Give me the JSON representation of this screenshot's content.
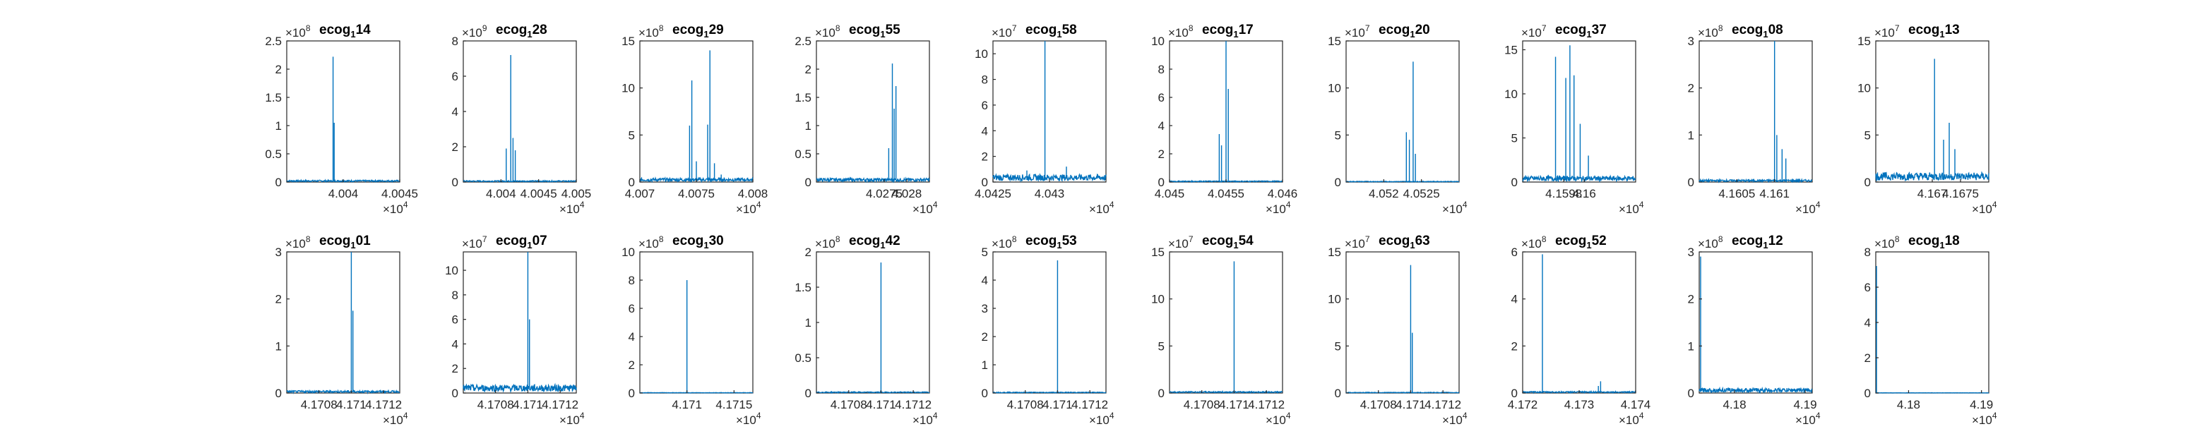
{
  "figure": {
    "background": "#ffffff",
    "axis_color": "#262626",
    "line_color": "#0072bd"
  },
  "chart_data": [
    {
      "type": "line",
      "title_main": "ecog",
      "title_sub": "1",
      "title_tail": "14",
      "xlim": [
        40035,
        40045
      ],
      "xticks": [
        40040,
        40045
      ],
      "xtick_labels": [
        "4.004",
        "4.0045"
      ],
      "x_exp": "4",
      "ylim": [
        0,
        2.5
      ],
      "yticks": [
        0,
        0.5,
        1,
        1.5,
        2,
        2.5
      ],
      "ytick_labels": [
        "0",
        "0.5",
        "1",
        "1.5",
        "2",
        "2.5"
      ],
      "y_exp": "8",
      "series": [
        {
          "baseline": 0.02,
          "spikes": [
            {
              "x": 40039.1,
              "y": 2.22
            },
            {
              "x": 40039.2,
              "y": 1.05
            }
          ]
        }
      ]
    },
    {
      "type": "line",
      "title_main": "ecog",
      "title_sub": "1",
      "title_tail": "28",
      "xlim": [
        40035,
        40050
      ],
      "xticks": [
        40040,
        40045,
        40050
      ],
      "xtick_labels": [
        "4.004",
        "4.0045",
        "4.005"
      ],
      "x_exp": "4",
      "ylim": [
        0,
        8
      ],
      "yticks": [
        0,
        2,
        4,
        6,
        8
      ],
      "ytick_labels": [
        "0",
        "2",
        "4",
        "6",
        "8"
      ],
      "y_exp": "9",
      "series": [
        {
          "baseline": 0.05,
          "spikes": [
            {
              "x": 40040.7,
              "y": 1.9
            },
            {
              "x": 40041.3,
              "y": 7.2
            },
            {
              "x": 40041.6,
              "y": 2.5
            },
            {
              "x": 40041.9,
              "y": 1.8
            }
          ]
        }
      ]
    },
    {
      "type": "line",
      "title_main": "ecog",
      "title_sub": "1",
      "title_tail": "29",
      "xlim": [
        40070,
        40080
      ],
      "xticks": [
        40070,
        40075,
        40080
      ],
      "xtick_labels": [
        "4.007",
        "4.0075",
        "4.008"
      ],
      "x_exp": "4",
      "ylim": [
        0,
        15
      ],
      "yticks": [
        0,
        5,
        10,
        15
      ],
      "ytick_labels": [
        "0",
        "5",
        "10",
        "15"
      ],
      "y_exp": "8",
      "series": [
        {
          "baseline": 0.25,
          "spikes": [
            {
              "x": 40074.4,
              "y": 6.0
            },
            {
              "x": 40074.6,
              "y": 10.8
            },
            {
              "x": 40075.0,
              "y": 2.2
            },
            {
              "x": 40076.0,
              "y": 6.1
            },
            {
              "x": 40076.2,
              "y": 14.0
            },
            {
              "x": 40076.6,
              "y": 2.0
            },
            {
              "x": 40077.2,
              "y": 0.8
            }
          ]
        }
      ]
    },
    {
      "type": "line",
      "title_main": "ecog",
      "title_sub": "1",
      "title_tail": "55",
      "xlim": [
        40260,
        40285
      ],
      "xticks": [
        40275,
        40280
      ],
      "xtick_labels": [
        "4.0275",
        "4.028"
      ],
      "x_exp": "4",
      "ylim": [
        0,
        2.5
      ],
      "yticks": [
        0,
        0.5,
        1,
        1.5,
        2,
        2.5
      ],
      "ytick_labels": [
        "0",
        "0.5",
        "1",
        "1.5",
        "2",
        "2.5"
      ],
      "y_exp": "8",
      "series": [
        {
          "baseline": 0.04,
          "spikes": [
            {
              "x": 40276.8,
              "y": 2.1
            },
            {
              "x": 40277.6,
              "y": 1.7
            },
            {
              "x": 40277.2,
              "y": 1.3
            },
            {
              "x": 40276.0,
              "y": 0.6
            }
          ]
        }
      ]
    },
    {
      "type": "line",
      "title_main": "ecog",
      "title_sub": "1",
      "title_tail": "58",
      "xlim": [
        40425,
        40435
      ],
      "xticks": [
        40425,
        40430
      ],
      "xtick_labels": [
        "4.0425",
        "4.043"
      ],
      "x_exp": "4",
      "ylim": [
        0,
        11
      ],
      "yticks": [
        0,
        2,
        4,
        6,
        8,
        10
      ],
      "ytick_labels": [
        "0",
        "2",
        "4",
        "6",
        "8",
        "10"
      ],
      "y_exp": "7",
      "series": [
        {
          "baseline": 0.35,
          "spikes": [
            {
              "x": 40429.6,
              "y": 11.0
            },
            {
              "x": 40431.5,
              "y": 1.2
            },
            {
              "x": 40428.0,
              "y": 0.9
            }
          ]
        }
      ]
    },
    {
      "type": "line",
      "title_main": "ecog",
      "title_sub": "1",
      "title_tail": "17",
      "xlim": [
        40450,
        40460
      ],
      "xticks": [
        40450,
        40455,
        40460
      ],
      "xtick_labels": [
        "4.045",
        "4.0455",
        "4.046"
      ],
      "x_exp": "4",
      "ylim": [
        0,
        10
      ],
      "yticks": [
        0,
        2,
        4,
        6,
        8,
        10
      ],
      "ytick_labels": [
        "0",
        "2",
        "4",
        "6",
        "8",
        "10"
      ],
      "y_exp": "8",
      "series": [
        {
          "baseline": 0.05,
          "spikes": [
            {
              "x": 40454.4,
              "y": 3.4
            },
            {
              "x": 40454.6,
              "y": 2.6
            },
            {
              "x": 40455.0,
              "y": 10.0
            },
            {
              "x": 40455.2,
              "y": 6.6
            }
          ]
        }
      ]
    },
    {
      "type": "line",
      "title_main": "ecog",
      "title_sub": "1",
      "title_tail": "20",
      "xlim": [
        40515,
        40530
      ],
      "xticks": [
        40520,
        40525
      ],
      "xtick_labels": [
        "4.052",
        "4.0525"
      ],
      "x_exp": "4",
      "ylim": [
        0,
        15
      ],
      "yticks": [
        0,
        5,
        10,
        15
      ],
      "ytick_labels": [
        "0",
        "5",
        "10",
        "15"
      ],
      "y_exp": "7",
      "series": [
        {
          "baseline": 0.05,
          "spikes": [
            {
              "x": 40523.0,
              "y": 5.3
            },
            {
              "x": 40523.4,
              "y": 4.5
            },
            {
              "x": 40523.9,
              "y": 12.8
            },
            {
              "x": 40524.2,
              "y": 3.0
            }
          ]
        }
      ]
    },
    {
      "type": "line",
      "title_main": "ecog",
      "title_sub": "1",
      "title_tail": "37",
      "xlim": [
        41594,
        41605
      ],
      "xticks": [
        41598,
        41600
      ],
      "xtick_labels": [
        "4.1598",
        "4.16"
      ],
      "x_exp": "4",
      "ylim": [
        0,
        16
      ],
      "yticks": [
        0,
        5,
        10,
        15
      ],
      "ytick_labels": [
        "0",
        "5",
        "10",
        "15"
      ],
      "y_exp": "7",
      "series": [
        {
          "baseline": 0.4,
          "spikes": [
            {
              "x": 41597.2,
              "y": 14.2
            },
            {
              "x": 41598.2,
              "y": 11.8
            },
            {
              "x": 41598.6,
              "y": 15.5
            },
            {
              "x": 41599.0,
              "y": 12.1
            },
            {
              "x": 41599.6,
              "y": 6.6
            },
            {
              "x": 41600.4,
              "y": 3.0
            }
          ]
        }
      ]
    },
    {
      "type": "line",
      "title_main": "ecog",
      "title_sub": "1",
      "title_tail": "08",
      "xlim": [
        41600,
        41615
      ],
      "xticks": [
        41605,
        41610
      ],
      "xtick_labels": [
        "4.1605",
        "4.161"
      ],
      "x_exp": "4",
      "ylim": [
        0,
        3
      ],
      "yticks": [
        0,
        1,
        2,
        3
      ],
      "ytick_labels": [
        "0",
        "1",
        "2",
        "3"
      ],
      "y_exp": "8",
      "series": [
        {
          "baseline": 0.03,
          "spikes": [
            {
              "x": 41610.0,
              "y": 3.0
            },
            {
              "x": 41610.3,
              "y": 1.0
            },
            {
              "x": 41611.0,
              "y": 0.7
            },
            {
              "x": 41611.5,
              "y": 0.5
            }
          ]
        }
      ]
    },
    {
      "type": "line",
      "title_main": "ecog",
      "title_sub": "1",
      "title_tail": "13",
      "xlim": [
        41660,
        41680
      ],
      "xticks": [
        41670,
        41675
      ],
      "xtick_labels": [
        "4.167",
        "4.1675"
      ],
      "x_exp": "4",
      "ylim": [
        0,
        15
      ],
      "yticks": [
        0,
        5,
        10,
        15
      ],
      "ytick_labels": [
        "0",
        "5",
        "10",
        "15"
      ],
      "y_exp": "7",
      "series": [
        {
          "baseline": 0.6,
          "spikes": [
            {
              "x": 41670.4,
              "y": 13.1
            },
            {
              "x": 41672.0,
              "y": 4.5
            },
            {
              "x": 41673.0,
              "y": 6.3
            },
            {
              "x": 41674.0,
              "y": 3.5
            }
          ]
        }
      ]
    },
    {
      "type": "line",
      "title_main": "ecog",
      "title_sub": "1",
      "title_tail": "01",
      "xlim": [
        41706,
        41713
      ],
      "xticks": [
        41708,
        41710,
        41712
      ],
      "xtick_labels": [
        "4.1708",
        "4.171",
        "4.1712"
      ],
      "x_exp": "4",
      "ylim": [
        0,
        3
      ],
      "yticks": [
        0,
        1,
        2,
        3
      ],
      "ytick_labels": [
        "0",
        "1",
        "2",
        "3"
      ],
      "y_exp": "8",
      "series": [
        {
          "baseline": 0.03,
          "spikes": [
            {
              "x": 41710.0,
              "y": 3.0
            },
            {
              "x": 41710.1,
              "y": 1.75
            }
          ]
        }
      ]
    },
    {
      "type": "line",
      "title_main": "ecog",
      "title_sub": "1",
      "title_tail": "07",
      "xlim": [
        41706,
        41713
      ],
      "xticks": [
        41708,
        41710,
        41712
      ],
      "xtick_labels": [
        "4.1708",
        "4.171",
        "4.1712"
      ],
      "x_exp": "4",
      "ylim": [
        0,
        11.5
      ],
      "yticks": [
        0,
        2,
        4,
        6,
        8,
        10
      ],
      "ytick_labels": [
        "0",
        "2",
        "4",
        "6",
        "8",
        "10"
      ],
      "y_exp": "7",
      "series": [
        {
          "baseline": 0.4,
          "spikes": [
            {
              "x": 41710.0,
              "y": 11.5
            },
            {
              "x": 41710.1,
              "y": 6.0
            }
          ]
        }
      ]
    },
    {
      "type": "line",
      "title_main": "ecog",
      "title_sub": "1",
      "title_tail": "30",
      "xlim": [
        41705,
        41717
      ],
      "xticks": [
        41710,
        41715
      ],
      "xtick_labels": [
        "4.171",
        "4.1715"
      ],
      "x_exp": "4",
      "ylim": [
        0,
        10
      ],
      "yticks": [
        0,
        2,
        4,
        6,
        8,
        10
      ],
      "ytick_labels": [
        "0",
        "2",
        "4",
        "6",
        "8",
        "10"
      ],
      "y_exp": "8",
      "series": [
        {
          "baseline": 0.02,
          "spikes": [
            {
              "x": 41710.0,
              "y": 8.0
            }
          ]
        }
      ]
    },
    {
      "type": "line",
      "title_main": "ecog",
      "title_sub": "1",
      "title_tail": "42",
      "xlim": [
        41706,
        41713
      ],
      "xticks": [
        41708,
        41710,
        41712
      ],
      "xtick_labels": [
        "4.1708",
        "4.171",
        "4.1712"
      ],
      "x_exp": "4",
      "ylim": [
        0,
        2
      ],
      "yticks": [
        0,
        0.5,
        1,
        1.5,
        2
      ],
      "ytick_labels": [
        "0",
        "0.5",
        "1",
        "1.5",
        "2"
      ],
      "y_exp": "8",
      "series": [
        {
          "baseline": 0.01,
          "spikes": [
            {
              "x": 41710.0,
              "y": 1.85
            }
          ]
        }
      ]
    },
    {
      "type": "line",
      "title_main": "ecog",
      "title_sub": "1",
      "title_tail": "53",
      "xlim": [
        41706,
        41713
      ],
      "xticks": [
        41708,
        41710,
        41712
      ],
      "xtick_labels": [
        "4.1708",
        "4.171",
        "4.1712"
      ],
      "x_exp": "4",
      "ylim": [
        0,
        5
      ],
      "yticks": [
        0,
        1,
        2,
        3,
        4,
        5
      ],
      "ytick_labels": [
        "0",
        "1",
        "2",
        "3",
        "4",
        "5"
      ],
      "y_exp": "8",
      "series": [
        {
          "baseline": 0.02,
          "spikes": [
            {
              "x": 41710.0,
              "y": 4.7
            }
          ]
        }
      ]
    },
    {
      "type": "line",
      "title_main": "ecog",
      "title_sub": "1",
      "title_tail": "54",
      "xlim": [
        41706,
        41713
      ],
      "xticks": [
        41708,
        41710,
        41712
      ],
      "xtick_labels": [
        "4.1708",
        "4.171",
        "4.1712"
      ],
      "x_exp": "4",
      "ylim": [
        0,
        15
      ],
      "yticks": [
        0,
        5,
        10,
        15
      ],
      "ytick_labels": [
        "0",
        "5",
        "10",
        "15"
      ],
      "y_exp": "7",
      "series": [
        {
          "baseline": 0.1,
          "spikes": [
            {
              "x": 41710.0,
              "y": 14.0
            }
          ]
        }
      ]
    },
    {
      "type": "line",
      "title_main": "ecog",
      "title_sub": "1",
      "title_tail": "63",
      "xlim": [
        41706,
        41713
      ],
      "xticks": [
        41708,
        41710,
        41712
      ],
      "xtick_labels": [
        "4.1708",
        "4.171",
        "4.1712"
      ],
      "x_exp": "4",
      "ylim": [
        0,
        15
      ],
      "yticks": [
        0,
        5,
        10,
        15
      ],
      "ytick_labels": [
        "0",
        "5",
        "10",
        "15"
      ],
      "y_exp": "7",
      "series": [
        {
          "baseline": 0.05,
          "spikes": [
            {
              "x": 41710.0,
              "y": 13.6
            },
            {
              "x": 41710.1,
              "y": 6.4
            }
          ]
        }
      ]
    },
    {
      "type": "line",
      "title_main": "ecog",
      "title_sub": "1",
      "title_tail": "52",
      "xlim": [
        41720,
        41740
      ],
      "xticks": [
        41720,
        41730,
        41740
      ],
      "xtick_labels": [
        "4.172",
        "4.173",
        "4.174"
      ],
      "x_exp": "4",
      "ylim": [
        0,
        6
      ],
      "yticks": [
        0,
        2,
        4,
        6
      ],
      "ytick_labels": [
        "0",
        "2",
        "4",
        "6"
      ],
      "y_exp": "8",
      "series": [
        {
          "baseline": 0.04,
          "spikes": [
            {
              "x": 41723.5,
              "y": 5.9
            },
            {
              "x": 41733.8,
              "y": 0.5
            },
            {
              "x": 41733.4,
              "y": 0.3
            }
          ]
        }
      ]
    },
    {
      "type": "line",
      "title_main": "ecog",
      "title_sub": "1",
      "title_tail": "12",
      "xlim": [
        41750,
        41910
      ],
      "xticks": [
        41800,
        41900
      ],
      "xtick_labels": [
        "4.18",
        "4.19"
      ],
      "x_exp": "4",
      "ylim": [
        0,
        3
      ],
      "yticks": [
        0,
        1,
        2,
        3
      ],
      "ytick_labels": [
        "0",
        "1",
        "2",
        "3"
      ],
      "y_exp": "8",
      "series": [
        {
          "baseline": 0.06,
          "spikes": [
            {
              "x": 41752.0,
              "y": 2.9
            }
          ]
        }
      ]
    },
    {
      "type": "line",
      "title_main": "ecog",
      "title_sub": "1",
      "title_tail": "18",
      "xlim": [
        41755,
        41910
      ],
      "xticks": [
        41800,
        41900
      ],
      "xtick_labels": [
        "4.18",
        "4.19"
      ],
      "x_exp": "4",
      "ylim": [
        0,
        8
      ],
      "yticks": [
        0,
        2,
        4,
        6,
        8
      ],
      "ytick_labels": [
        "0",
        "2",
        "4",
        "6",
        "8"
      ],
      "y_exp": "8",
      "series": [
        {
          "baseline": 0.01,
          "spikes": [
            {
              "x": 41756.0,
              "y": 7.2
            }
          ]
        }
      ]
    }
  ]
}
